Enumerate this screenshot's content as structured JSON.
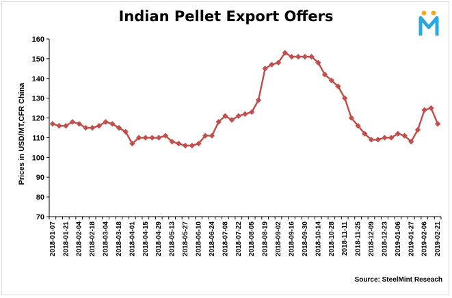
{
  "chart_data": {
    "type": "line",
    "title": "Indian Pellet Export Offers",
    "ylabel": "Prices in USD/MT,CFR China",
    "xlabel": "",
    "source": "Source: SteelMint Reseach",
    "ylim": [
      70,
      160
    ],
    "yticks": [
      70,
      80,
      90,
      100,
      110,
      120,
      130,
      140,
      150,
      160
    ],
    "grid": false,
    "line_color": "#c0504d",
    "x": [
      "2018-01-07",
      "2018-01-14",
      "2018-01-21",
      "2018-01-28",
      "2018-02-04",
      "2018-02-11",
      "2018-02-18",
      "2018-02-25",
      "2018-03-04",
      "2018-03-11",
      "2018-03-18",
      "2018-03-25",
      "2018-04-01",
      "2018-04-08",
      "2018-04-15",
      "2018-04-22",
      "2018-04-29",
      "2018-05-06",
      "2018-05-13",
      "2018-05-20",
      "2018-05-27",
      "2018-06-03",
      "2018-06-10",
      "2018-06-17",
      "2018-06-24",
      "2018-07-01",
      "2018-07-08",
      "2018-07-15",
      "2018-07-22",
      "2018-07-29",
      "2018-08-05",
      "2018-08-12",
      "2018-08-19",
      "2018-08-26",
      "2018-09-02",
      "2018-09-09",
      "2018-09-16",
      "2018-09-23",
      "2018-09-30",
      "2018-10-07",
      "2018-10-14",
      "2018-10-21",
      "2018-10-28",
      "2018-11-04",
      "2018-11-11",
      "2018-11-18",
      "2018-11-25",
      "2018-12-02",
      "2018-12-09",
      "2018-12-16",
      "2018-12-23",
      "2018-12-30",
      "2019-01-06",
      "2019-01-13",
      "2019-01-27",
      "2019-02-03",
      "2019-02-06",
      "2019-02-13",
      "2019-02-21"
    ],
    "tick_labels": [
      "2018-01-07",
      "2018-01-21",
      "2018-02-04",
      "2018-02-18",
      "2018-03-04",
      "2018-03-18",
      "2018-04-01",
      "2018-04-15",
      "2018-04-29",
      "2018-05-13",
      "2018-05-27",
      "2018-06-10",
      "2018-06-24",
      "2018-07-08",
      "2018-07-22",
      "2018-08-05",
      "2018-08-19",
      "2018-09-02",
      "2018-09-16",
      "2018-09-30",
      "2018-10-14",
      "2018-10-28",
      "2018-11-11",
      "2018-11-25",
      "2018-12-09",
      "2018-12-23",
      "2019-01-06",
      "2019-01-27",
      "2019-02-06",
      "2019-02-21"
    ],
    "series": [
      {
        "values": [
          117,
          116,
          116,
          118,
          117,
          115,
          115,
          116,
          118,
          117,
          115,
          113,
          107,
          110,
          110,
          110,
          110,
          111,
          108,
          107,
          106,
          106,
          107,
          111,
          111,
          118,
          121,
          119,
          121,
          122,
          123,
          129,
          145,
          147,
          148,
          153,
          151,
          151,
          151,
          151,
          148,
          142,
          139,
          136,
          130,
          120,
          116,
          112,
          109,
          109,
          110,
          110,
          112,
          111,
          108,
          114,
          124,
          125,
          117
        ]
      }
    ]
  }
}
